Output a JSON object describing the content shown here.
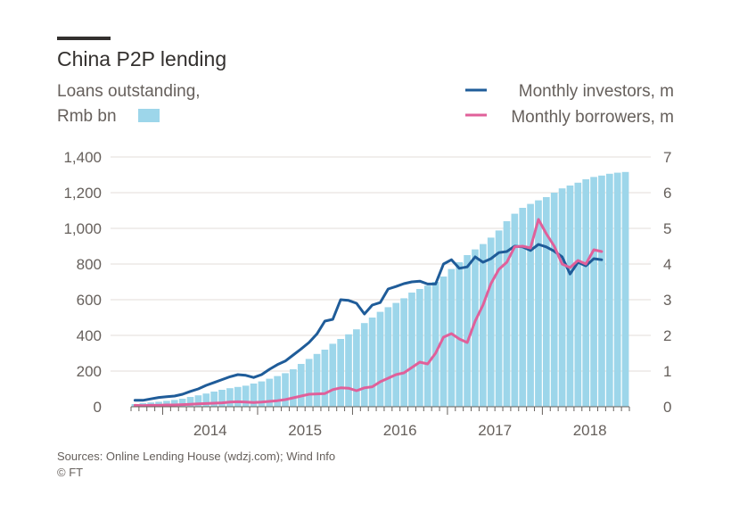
{
  "chart_data": {
    "type": "bar",
    "title": "China P2P lending",
    "subtitle_lines": [
      "Loans outstanding,",
      "Rmb bn"
    ],
    "x_labels": [
      "2014",
      "2015",
      "2016",
      "2017",
      "2018"
    ],
    "y_left": {
      "range": [
        0,
        1400
      ],
      "ticks": [
        "0",
        "200",
        "400",
        "600",
        "800",
        "1,000",
        "1,200",
        "1,400"
      ]
    },
    "y_right": {
      "range": [
        0,
        7
      ],
      "ticks": [
        "0",
        "1",
        "2",
        "3",
        "4",
        "5",
        "6",
        "7"
      ]
    },
    "grid": true,
    "legend_placement": "top-right",
    "start_month": "2013-09",
    "bars": {
      "name": "Loans outstanding, Rmb bn",
      "color": "#9dd6ea",
      "values": [
        15,
        20,
        24,
        28,
        33,
        38,
        45,
        55,
        64,
        74,
        85,
        95,
        104,
        111,
        118,
        130,
        142,
        157,
        172,
        188,
        210,
        240,
        268,
        296,
        320,
        353,
        380,
        406,
        434,
        469,
        500,
        532,
        558,
        582,
        608,
        640,
        660,
        679,
        700,
        730,
        772,
        810,
        850,
        882,
        912,
        948,
        988,
        1040,
        1082,
        1115,
        1137,
        1157,
        1175,
        1200,
        1224,
        1240,
        1256,
        1275,
        1288,
        1296,
        1306,
        1312,
        1316
      ]
    },
    "series": [
      {
        "name": "Monthly investors, m",
        "color": "#1f5c99",
        "values": [
          0.18,
          0.18,
          0.22,
          0.26,
          0.28,
          0.3,
          0.35,
          0.43,
          0.5,
          0.6,
          0.68,
          0.76,
          0.84,
          0.9,
          0.88,
          0.82,
          0.9,
          1.05,
          1.18,
          1.28,
          1.45,
          1.62,
          1.8,
          2.04,
          2.4,
          2.45,
          3.0,
          2.98,
          2.9,
          2.6,
          2.85,
          2.92,
          3.3,
          3.37,
          3.45,
          3.5,
          3.52,
          3.44,
          3.44,
          4.0,
          4.12,
          3.88,
          3.92,
          4.2,
          4.05,
          4.15,
          4.32,
          4.35,
          4.5,
          4.48,
          4.38,
          4.55,
          4.48,
          4.36,
          4.2,
          3.72,
          4.05,
          3.95,
          4.15,
          4.12
        ]
      },
      {
        "name": "Monthly borrowers, m",
        "color": "#e0609a",
        "values": [
          0.04,
          0.03,
          0.04,
          0.04,
          0.05,
          0.05,
          0.06,
          0.07,
          0.08,
          0.09,
          0.1,
          0.11,
          0.13,
          0.14,
          0.13,
          0.12,
          0.13,
          0.15,
          0.17,
          0.2,
          0.25,
          0.3,
          0.35,
          0.36,
          0.37,
          0.48,
          0.53,
          0.52,
          0.45,
          0.53,
          0.56,
          0.7,
          0.8,
          0.9,
          0.95,
          1.1,
          1.25,
          1.2,
          1.5,
          1.95,
          2.05,
          1.9,
          1.8,
          2.4,
          2.85,
          3.45,
          3.85,
          4.05,
          4.48,
          4.5,
          4.45,
          5.25,
          4.85,
          4.5,
          4.0,
          3.9,
          4.1,
          4.0,
          4.4,
          4.35
        ]
      }
    ],
    "sources": "Sources: Online Lending House (wdzj.com); Wind Info",
    "copyright": "© FT"
  }
}
